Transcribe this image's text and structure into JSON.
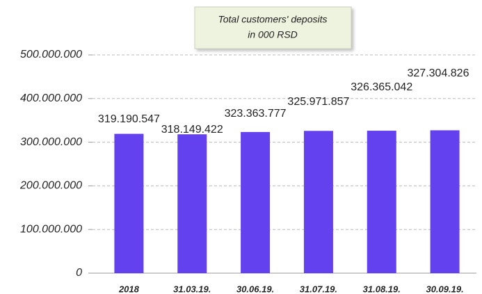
{
  "chart_data": {
    "type": "bar",
    "title": [
      "Total customers' deposits",
      "in 000 RSD"
    ],
    "categories": [
      "2018",
      "31.03.19.",
      "30.06.19.",
      "31.07.19.",
      "31.08.19.",
      "30.09.19."
    ],
    "values": [
      319190547,
      318149422,
      323363777,
      325971857,
      326365042,
      327304826
    ],
    "value_labels": [
      "319.190.547",
      "318.149.422",
      "323.363.777",
      "325.971.857",
      "326.365.042",
      "327.304.826"
    ],
    "color": "#6341ee",
    "ylim": [
      0,
      500000000
    ],
    "yticks": [
      0,
      {
        "value": 100000000,
        "label": "100.000.000"
      },
      {
        "value": 200000000,
        "label": "200.000.000"
      },
      {
        "value": 300000000,
        "label": "300.000.000"
      },
      {
        "value": 400000000,
        "label": "400.000.000"
      },
      {
        "value": 500000000,
        "label": "500.000.000"
      }
    ],
    "grid": true
  }
}
